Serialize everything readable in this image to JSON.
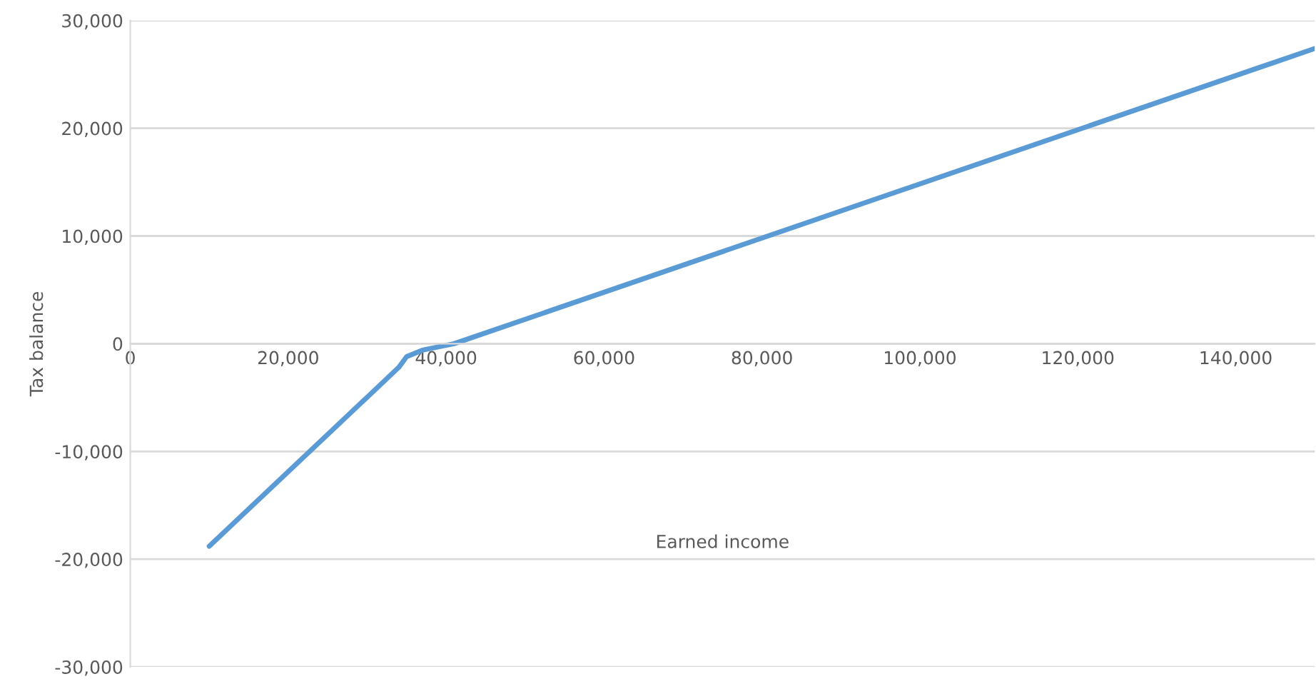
{
  "chart_data": {
    "type": "line",
    "xlabel": "Earned income",
    "ylabel": "Tax balance",
    "x": [
      10000,
      34000,
      35000,
      37000,
      41000,
      150000
    ],
    "series": [
      {
        "color": "#5b9bd5",
        "values": [
          -18800,
          -2200,
          -1200,
          -600,
          0,
          27400
        ]
      }
    ],
    "xlim": [
      0,
      150000
    ],
    "xticks": [
      {
        "value": 0,
        "label": "0"
      },
      {
        "value": 20000,
        "label": "20,000"
      },
      {
        "value": 40000,
        "label": "40,000"
      },
      {
        "value": 60000,
        "label": "60,000"
      },
      {
        "value": 80000,
        "label": "80,000"
      },
      {
        "value": 100000,
        "label": "100,000"
      },
      {
        "value": 120000,
        "label": "120,000"
      },
      {
        "value": 140000,
        "label": "140,000"
      }
    ],
    "ylim": [
      -30000,
      30000
    ],
    "yticks": [
      {
        "value": -30000,
        "label": "-30,000"
      },
      {
        "value": -20000,
        "label": "-20,000"
      },
      {
        "value": -10000,
        "label": "-10,000"
      },
      {
        "value": 0,
        "label": "0"
      },
      {
        "value": 10000,
        "label": "10,000"
      },
      {
        "value": 20000,
        "label": "20,000"
      },
      {
        "value": 30000,
        "label": "30,000"
      }
    ],
    "grid": "y",
    "legend": false
  }
}
